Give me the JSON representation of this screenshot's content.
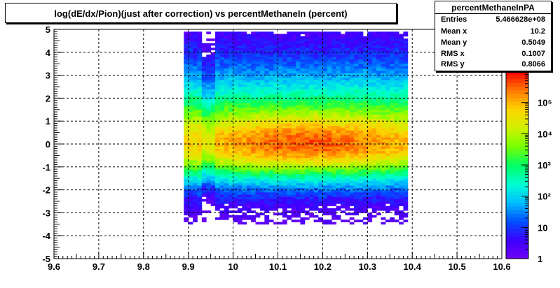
{
  "chart_data": {
    "type": "heatmap",
    "title": "log(dE/dx/Pion)(just after correction) vs percentMethaneIn (percent)",
    "xlabel": "",
    "ylabel": "",
    "xlim": [
      9.6,
      10.6
    ],
    "ylim": [
      -5,
      5
    ],
    "x_ticks": [
      "9.6",
      "9.7",
      "9.8",
      "9.9",
      "10",
      "10.1",
      "10.2",
      "10.3",
      "10.4",
      "10.5",
      "10.6"
    ],
    "y_ticks": [
      "-5",
      "-4",
      "-3",
      "-2",
      "-1",
      "0",
      "1",
      "2",
      "3",
      "4",
      "5"
    ],
    "grid": true,
    "z_scale": "log",
    "z_range": [
      1,
      1000000
    ],
    "z_ticks": [
      "1",
      "10",
      "10²",
      "10³",
      "10⁴",
      "10⁵"
    ],
    "occupied_x_range": [
      9.89,
      10.39
    ],
    "occupied_y_range": [
      -3.5,
      4.9
    ],
    "density_peak": {
      "x": 10.17,
      "y": 0.0
    },
    "stats": {
      "name": "percentMethaneInPA",
      "rows": [
        {
          "label": "Entries",
          "value": "5.466628e+08"
        },
        {
          "label": "Mean x",
          "value": "10.2"
        },
        {
          "label": "Mean y",
          "value": "0.5049"
        },
        {
          "label": "RMS x",
          "value": "0.1007"
        },
        {
          "label": "RMS y",
          "value": "0.8066"
        }
      ]
    }
  }
}
